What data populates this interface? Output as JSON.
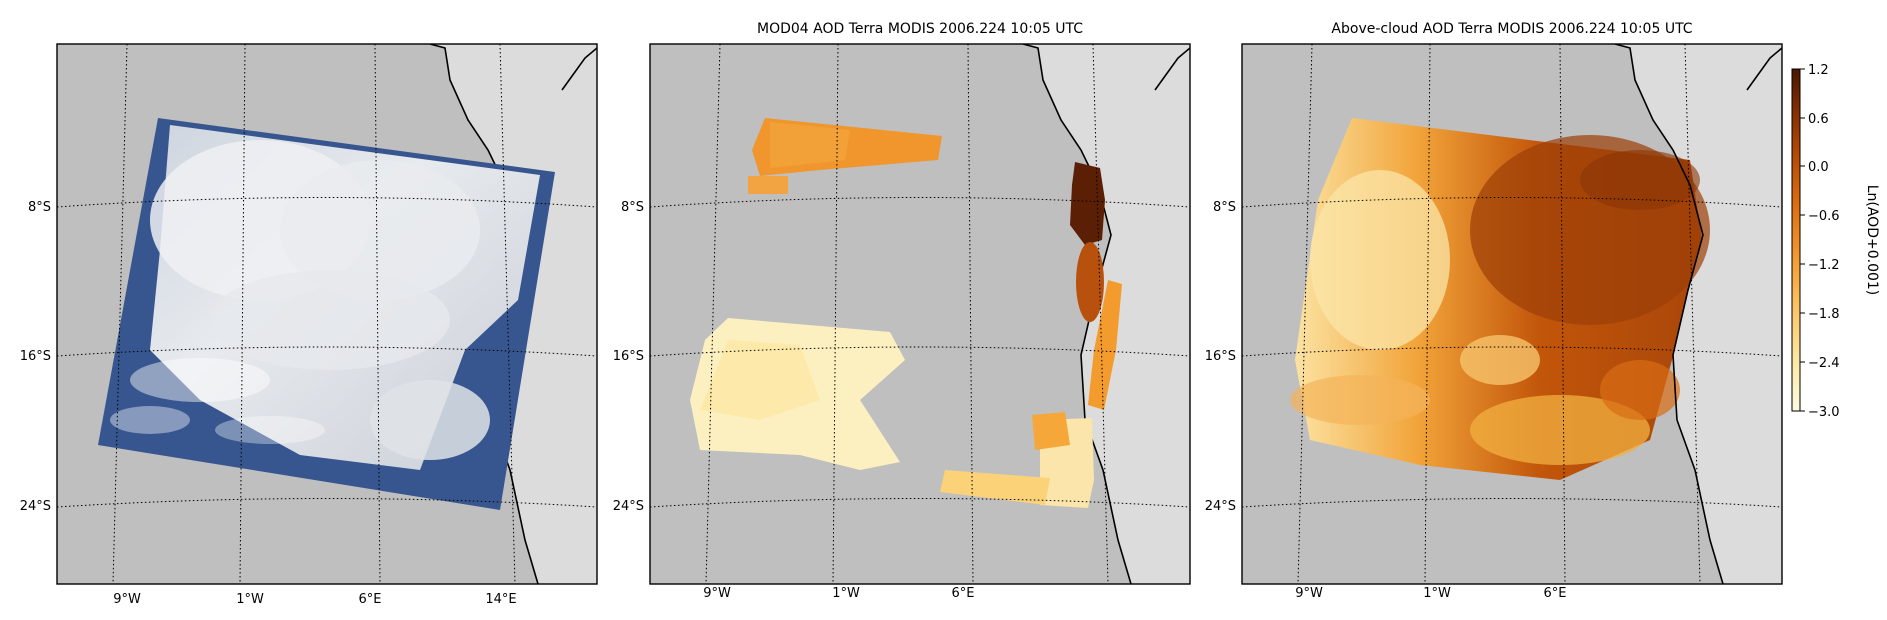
{
  "panels": [
    {
      "id": "truecolor",
      "title": "",
      "lon_labels": [
        "9°W",
        "1°W",
        "6°E",
        "14°E"
      ],
      "lat_labels": [
        "8°S",
        "16°S",
        "24°S"
      ]
    },
    {
      "id": "mod04",
      "title": "MOD04 AOD Terra MODIS 2006.224 10:05 UTC",
      "lon_labels": [
        "9°W",
        "1°W",
        "6°E"
      ],
      "lat_labels": [
        "8°S",
        "16°S",
        "24°S"
      ]
    },
    {
      "id": "above_cloud",
      "title": "Above-cloud AOD Terra MODIS 2006.224 10:05 UTC",
      "lon_labels": [
        "9°W",
        "1°W",
        "6°E"
      ],
      "lat_labels": [
        "8°S",
        "16°S",
        "24°S"
      ]
    }
  ],
  "colorbar": {
    "label": "Ln(AOD+0.001)",
    "ticks": [
      "1.2",
      "0.6",
      "0.0",
      "−0.6",
      "−1.2",
      "−1.8",
      "−2.4",
      "−3.0"
    ],
    "colors": [
      "#fffbe2",
      "#fde9a5",
      "#fbc466",
      "#f39a30",
      "#dd6f12",
      "#b44a06",
      "#7a2a03",
      "#4a1602"
    ]
  },
  "colors": {
    "ocean": "#bfbfbf",
    "land": "#dcdcdc"
  }
}
